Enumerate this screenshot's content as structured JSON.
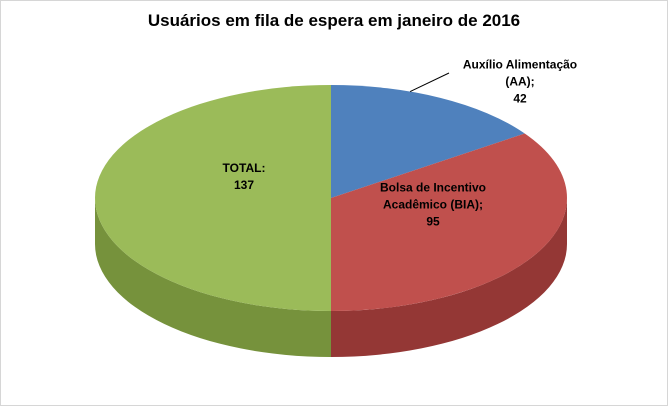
{
  "frame": {
    "background": "#ffffff",
    "border_color": "#d6d6d6"
  },
  "chart_data": {
    "type": "pie",
    "title": "Usuários em fila de espera em janeiro de 2016",
    "effect": "3d",
    "start_angle_deg": 0,
    "labels": [
      "Auxílio Alimentação (AA)",
      "Bolsa de Incentivo Acadêmico (BIA)",
      "TOTAL"
    ],
    "values": [
      42,
      95,
      137
    ],
    "colors": [
      "#4F81BD",
      "#C0504D",
      "#9BBB59"
    ],
    "side_colors": [
      "#38618F",
      "#943735",
      "#76923C"
    ],
    "legend": "none",
    "data_labels": {
      "aa": "Auxílio Alimentação\n(AA);\n42",
      "bia": "Bolsa de Incentivo\nAcadêmico (BIA);\n95",
      "total": "TOTAL:\n137"
    },
    "leader_line_color": "#000000"
  }
}
